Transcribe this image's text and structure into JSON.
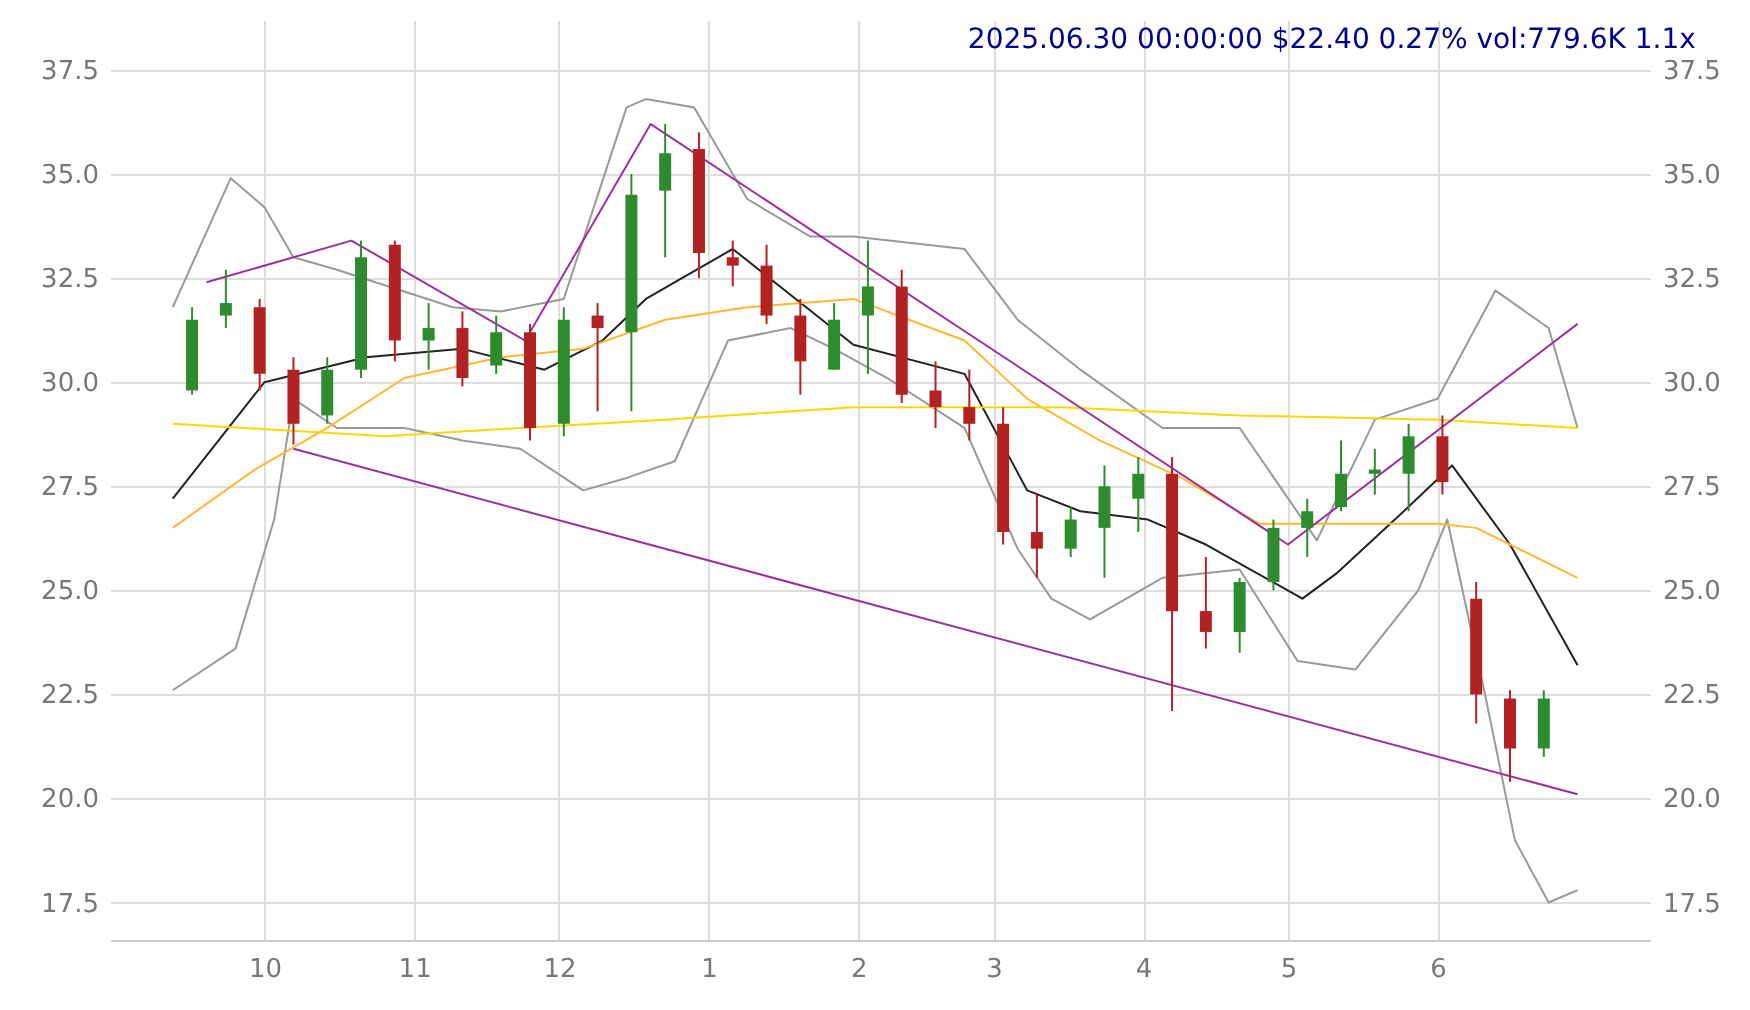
{
  "chart_data": {
    "type": "candlestick",
    "title": "2025.06.30 00:00:00 $22.40 0.27% vol:779.6K 1.1x",
    "x": [
      "2024-09-16",
      "2024-09-23",
      "2024-09-30",
      "2024-10-07",
      "2024-10-14",
      "2024-10-21",
      "2024-10-28",
      "2024-11-04",
      "2024-11-11",
      "2024-11-18",
      "2024-11-25",
      "2024-12-02",
      "2024-12-09",
      "2024-12-16",
      "2024-12-23",
      "2024-12-30",
      "2025-01-06",
      "2025-01-13",
      "2025-01-20",
      "2025-01-27",
      "2025-02-03",
      "2025-02-10",
      "2025-02-17",
      "2025-02-24",
      "2025-03-03",
      "2025-03-10",
      "2025-03-17",
      "2025-03-24",
      "2025-03-31",
      "2025-04-07",
      "2025-04-14",
      "2025-04-21",
      "2025-04-28",
      "2025-05-05",
      "2025-05-12",
      "2025-05-19",
      "2025-05-26",
      "2025-06-02",
      "2025-06-09",
      "2025-06-16",
      "2025-06-23"
    ],
    "ohlc": [
      [
        29.8,
        31.8,
        29.7,
        31.5
      ],
      [
        31.6,
        32.7,
        31.3,
        31.9
      ],
      [
        31.8,
        32.0,
        29.8,
        30.2
      ],
      [
        30.3,
        30.6,
        28.5,
        29.0
      ],
      [
        29.2,
        30.6,
        29.0,
        30.3
      ],
      [
        30.3,
        33.4,
        30.1,
        33.0
      ],
      [
        33.3,
        33.4,
        30.5,
        31.0
      ],
      [
        31.0,
        31.9,
        30.3,
        31.3
      ],
      [
        31.3,
        31.7,
        29.9,
        30.1
      ],
      [
        30.4,
        31.6,
        30.2,
        31.2
      ],
      [
        31.2,
        31.4,
        28.6,
        28.9
      ],
      [
        29.0,
        31.8,
        28.7,
        31.5
      ],
      [
        31.6,
        31.9,
        29.3,
        31.3
      ],
      [
        31.2,
        35.0,
        29.3,
        34.5
      ],
      [
        34.6,
        36.2,
        33.0,
        35.5
      ],
      [
        35.6,
        36.0,
        32.5,
        33.1
      ],
      [
        33.0,
        33.4,
        32.3,
        32.8
      ],
      [
        32.8,
        33.3,
        31.4,
        31.6
      ],
      [
        31.6,
        32.0,
        29.7,
        30.5
      ],
      [
        30.3,
        31.9,
        30.3,
        31.5
      ],
      [
        31.6,
        33.4,
        30.2,
        32.3
      ],
      [
        32.3,
        32.7,
        29.5,
        29.7
      ],
      [
        29.8,
        30.5,
        28.9,
        29.4
      ],
      [
        29.4,
        30.3,
        28.6,
        29.0
      ],
      [
        29.0,
        29.4,
        26.1,
        26.4
      ],
      [
        26.4,
        27.3,
        25.3,
        26.0
      ],
      [
        26.0,
        27.0,
        25.8,
        26.7
      ],
      [
        26.5,
        28.0,
        25.3,
        27.5
      ],
      [
        27.2,
        28.2,
        26.4,
        27.8
      ],
      [
        27.8,
        28.2,
        22.1,
        24.5
      ],
      [
        24.5,
        25.8,
        23.6,
        24.0
      ],
      [
        24.0,
        25.3,
        23.5,
        25.2
      ],
      [
        25.2,
        26.7,
        25.0,
        26.5
      ],
      [
        26.5,
        27.2,
        25.8,
        26.9
      ],
      [
        27.0,
        28.6,
        26.9,
        27.8
      ],
      [
        27.8,
        28.4,
        27.3,
        27.9
      ],
      [
        27.8,
        29.0,
        26.9,
        28.7
      ],
      [
        28.7,
        29.2,
        27.3,
        27.6
      ],
      [
        24.8,
        25.2,
        21.8,
        22.5
      ],
      [
        22.4,
        22.6,
        20.4,
        21.2
      ],
      [
        21.2,
        22.6,
        21.0,
        22.4
      ]
    ],
    "colors": [
      "#2e8b2e",
      "#2e8b2e",
      "#b22222",
      "#b22222",
      "#2e8b2e",
      "#2e8b2e",
      "#b22222",
      "#2e8b2e",
      "#b22222",
      "#2e8b2e",
      "#b22222",
      "#2e8b2e",
      "#b22222",
      "#2e8b2e",
      "#2e8b2e",
      "#b22222",
      "#b22222",
      "#b22222",
      "#b22222",
      "#2e8b2e",
      "#2e8b2e",
      "#b22222",
      "#b22222",
      "#b22222",
      "#b22222",
      "#b22222",
      "#2e8b2e",
      "#2e8b2e",
      "#2e8b2e",
      "#b22222",
      "#b22222",
      "#2e8b2e",
      "#2e8b2e",
      "#2e8b2e",
      "#2e8b2e",
      "#2e8b2e",
      "#2e8b2e",
      "#b22222",
      "#b22222",
      "#b22222",
      "#2e8b2e"
    ],
    "series": [
      {
        "type": "line",
        "color": "#999999",
        "x": [
          "2024-09-12",
          "2024-09-24",
          "2024-10-01",
          "2024-10-07",
          "2024-10-16",
          "2024-11-09",
          "2024-11-19",
          "2024-12-02",
          "2024-12-15",
          "2024-12-19",
          "2024-12-29",
          "2025-01-09",
          "2025-01-22",
          "2025-01-31",
          "2025-02-23",
          "2025-03-06",
          "2025-03-19",
          "2025-04-05",
          "2025-04-21",
          "2025-05-07",
          "2025-05-19",
          "2025-06-01",
          "2025-06-13",
          "2025-06-24",
          "2025-06-30"
        ],
        "values": [
          31.8,
          34.9,
          34.2,
          33.0,
          32.7,
          31.8,
          31.7,
          32.0,
          36.6,
          36.8,
          36.6,
          34.4,
          33.5,
          33.5,
          33.2,
          31.5,
          30.3,
          28.9,
          28.9,
          26.2,
          29.1,
          29.6,
          32.2,
          31.3,
          28.9
        ]
      },
      {
        "type": "line",
        "color": "#999999",
        "x": [
          "2024-09-12",
          "2024-09-25",
          "2024-10-03",
          "2024-10-07",
          "2024-10-16",
          "2024-10-30",
          "2024-11-11",
          "2024-11-23",
          "2024-12-06",
          "2024-12-15",
          "2024-12-25",
          "2025-01-05",
          "2025-01-18",
          "2025-01-27",
          "2025-02-07",
          "2025-02-23",
          "2025-03-06",
          "2025-03-13",
          "2025-03-21",
          "2025-04-05",
          "2025-04-21",
          "2025-05-03",
          "2025-05-15",
          "2025-05-28",
          "2025-06-03",
          "2025-06-11",
          "2025-06-17",
          "2025-06-24",
          "2025-06-30"
        ],
        "values": [
          22.6,
          23.6,
          26.7,
          29.6,
          28.9,
          28.9,
          28.6,
          28.4,
          27.4,
          27.7,
          28.1,
          31.0,
          31.3,
          30.8,
          30.1,
          28.9,
          26.0,
          24.8,
          24.3,
          25.3,
          25.5,
          23.3,
          23.1,
          25.0,
          26.7,
          22.4,
          19.0,
          17.5,
          17.8
        ]
      },
      {
        "type": "line",
        "color": "#222222",
        "x": [
          "2024-09-12",
          "2024-10-01",
          "2024-10-22",
          "2024-11-11",
          "2024-11-28",
          "2024-12-10",
          "2024-12-19",
          "2025-01-06",
          "2025-01-31",
          "2025-02-23",
          "2025-03-08",
          "2025-03-19",
          "2025-04-02",
          "2025-04-14",
          "2025-05-04",
          "2025-05-11",
          "2025-05-25",
          "2025-06-04",
          "2025-06-16",
          "2025-06-30"
        ],
        "values": [
          27.2,
          30.0,
          30.6,
          30.8,
          30.3,
          31.0,
          32.0,
          33.2,
          30.9,
          30.2,
          27.4,
          26.9,
          26.7,
          26.1,
          24.8,
          25.4,
          26.9,
          28.0,
          26.1,
          23.2
        ]
      },
      {
        "type": "line",
        "color": "#ffb732",
        "x": [
          "2024-09-12",
          "2024-09-29",
          "2024-10-14",
          "2024-10-30",
          "2024-11-19",
          "2024-12-06",
          "2024-12-23",
          "2025-01-09",
          "2025-01-31",
          "2025-02-23",
          "2025-03-08",
          "2025-03-23",
          "2025-04-09",
          "2025-04-25",
          "2025-05-15",
          "2025-06-01",
          "2025-06-09",
          "2025-06-30"
        ],
        "values": [
          26.5,
          27.9,
          28.9,
          30.1,
          30.6,
          30.8,
          31.5,
          31.8,
          32.0,
          31.0,
          29.6,
          28.6,
          27.7,
          26.6,
          26.6,
          26.6,
          26.5,
          25.3
        ]
      },
      {
        "type": "line",
        "color": "#ffd700",
        "x": [
          "2024-09-12",
          "2024-10-26",
          "2024-11-23",
          "2024-12-23",
          "2025-01-31",
          "2025-03-15",
          "2025-04-21",
          "2025-06-01",
          "2025-06-30"
        ],
        "values": [
          29.0,
          28.7,
          28.9,
          29.1,
          29.4,
          29.4,
          29.2,
          29.1,
          28.9
        ]
      },
      {
        "type": "line",
        "color": "#9b30a0",
        "x": [
          "2024-09-19",
          "2024-10-19",
          "2024-11-24",
          "2024-12-20",
          "2025-05-01",
          "2025-06-30"
        ],
        "values": [
          32.4,
          33.4,
          31.0,
          36.2,
          26.1,
          31.4
        ]
      },
      {
        "type": "line",
        "color": "#9b30a0",
        "x": [
          "2024-10-07",
          "2025-06-30"
        ],
        "values": [
          28.4,
          20.1
        ]
      }
    ],
    "xlim": [
      "2024-08-30",
      "2025-07-15"
    ],
    "xticks": [
      {
        "value": "2024-10-01",
        "label": "10"
      },
      {
        "value": "2024-11-01",
        "label": "11"
      },
      {
        "value": "2024-12-01",
        "label": "12"
      },
      {
        "value": "2025-01-01",
        "label": "1"
      },
      {
        "value": "2025-02-01",
        "label": "2"
      },
      {
        "value": "2025-03-01",
        "label": "3"
      },
      {
        "value": "2025-04-01",
        "label": "4"
      },
      {
        "value": "2025-05-01",
        "label": "5"
      },
      {
        "value": "2025-06-01",
        "label": "6"
      }
    ],
    "ylim": [
      16.6,
      38.7
    ],
    "yticks": [
      17.5,
      {
        "value": 20,
        "label": "20.0"
      },
      22.5,
      {
        "value": 25,
        "label": "25.0"
      },
      27.5,
      {
        "value": 30,
        "label": "30.0"
      },
      32.5,
      {
        "value": 35,
        "label": "35.0"
      },
      37.5
    ],
    "y2lim": [
      16.6,
      38.7
    ],
    "y2ticks": [
      17.5,
      {
        "value": 20,
        "label": "20.0"
      },
      22.5,
      {
        "value": 25,
        "label": "25.0"
      },
      27.5,
      {
        "value": 30,
        "label": "30.0"
      },
      32.5,
      {
        "value": 35,
        "label": "35.0"
      },
      37.5
    ],
    "grid": true
  }
}
